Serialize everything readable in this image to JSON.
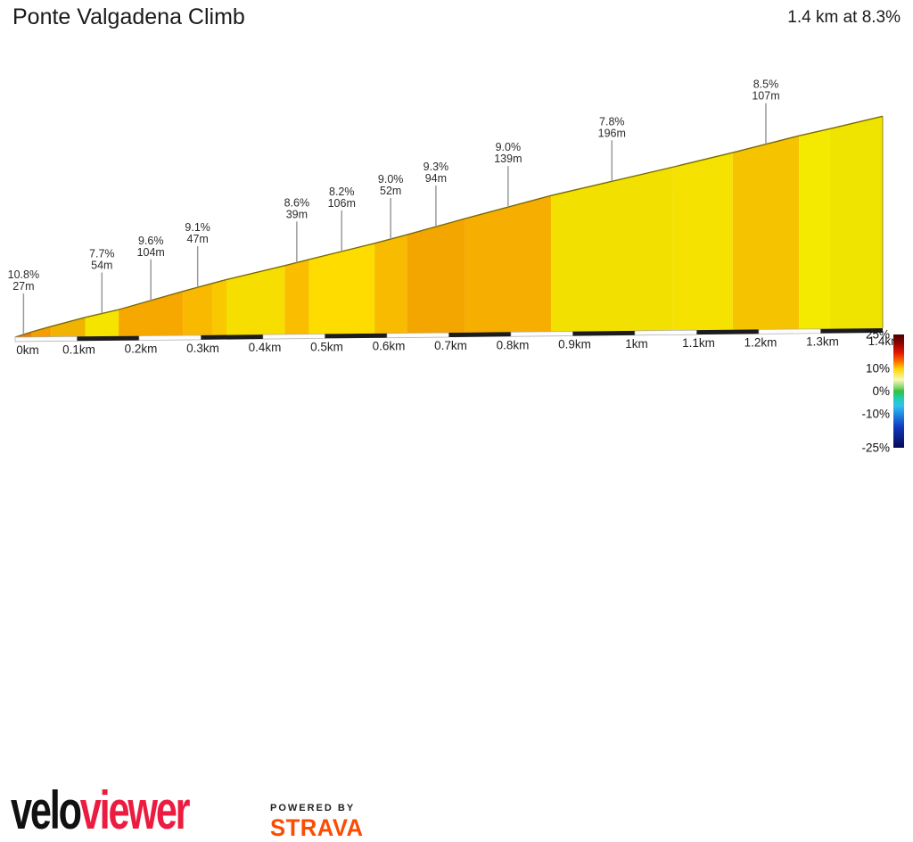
{
  "header": {
    "title": "Ponte Valgadena Climb",
    "summary": "1.4 km at 8.3%"
  },
  "chart_data": {
    "type": "area",
    "title": "Ponte Valgadena Climb",
    "summary": "1.4 km at 8.3%",
    "total_distance_km": 1.4,
    "avg_gradient_pct": 8.3,
    "x_unit": "km",
    "x_ticks": [
      "0km",
      "0.1km",
      "0.2km",
      "0.3km",
      "0.4km",
      "0.5km",
      "0.6km",
      "0.7km",
      "0.8km",
      "0.9km",
      "1km",
      "1.1km",
      "1.2km",
      "1.3km",
      "1.4km"
    ],
    "grid": false,
    "legend_position": "bottom-right",
    "segments": [
      {
        "start_m": 0,
        "length_m": 27,
        "gradient_pct": 10.8,
        "color": "#EE7C00",
        "labeled": true,
        "label_grade": "10.8%",
        "label_length": "27m"
      },
      {
        "start_m": 27,
        "length_m": 31,
        "gradient_pct": 9.5,
        "color": "#F59E00",
        "labeled": false,
        "label_grade": null,
        "label_length": null
      },
      {
        "start_m": 58,
        "length_m": 55,
        "gradient_pct": 8.9,
        "color": "#EFB300",
        "labeled": false,
        "label_grade": null,
        "label_length": null
      },
      {
        "start_m": 113,
        "length_m": 54,
        "gradient_pct": 7.7,
        "color": "#F4E400",
        "labeled": true,
        "label_grade": "7.7%",
        "label_length": "54m"
      },
      {
        "start_m": 167,
        "length_m": 104,
        "gradient_pct": 9.6,
        "color": "#F6A800",
        "labeled": true,
        "label_grade": "9.6%",
        "label_length": "104m"
      },
      {
        "start_m": 271,
        "length_m": 47,
        "gradient_pct": 9.1,
        "color": "#F9B900",
        "labeled": true,
        "label_grade": "9.1%",
        "label_length": "47m"
      },
      {
        "start_m": 318,
        "length_m": 23,
        "gradient_pct": 8.8,
        "color": "#F8C800",
        "labeled": false,
        "label_grade": null,
        "label_length": null
      },
      {
        "start_m": 341,
        "length_m": 94,
        "gradient_pct": 8.0,
        "color": "#F6DF00",
        "labeled": false,
        "label_grade": null,
        "label_length": null
      },
      {
        "start_m": 435,
        "length_m": 39,
        "gradient_pct": 8.6,
        "color": "#FABD00",
        "labeled": true,
        "label_grade": "8.6%",
        "label_length": "39m"
      },
      {
        "start_m": 474,
        "length_m": 106,
        "gradient_pct": 8.2,
        "color": "#FFDC00",
        "labeled": true,
        "label_grade": "8.2%",
        "label_length": "106m"
      },
      {
        "start_m": 580,
        "length_m": 52,
        "gradient_pct": 9.0,
        "color": "#F8BB00",
        "labeled": true,
        "label_grade": "9.0%",
        "label_length": "52m"
      },
      {
        "start_m": 632,
        "length_m": 94,
        "gradient_pct": 9.3,
        "color": "#F3A600",
        "labeled": true,
        "label_grade": "9.3%",
        "label_length": "94m"
      },
      {
        "start_m": 726,
        "length_m": 139,
        "gradient_pct": 9.0,
        "color": "#F6AE00",
        "labeled": true,
        "label_grade": "9.0%",
        "label_length": "139m"
      },
      {
        "start_m": 865,
        "length_m": 196,
        "gradient_pct": 7.8,
        "color": "#F1E000",
        "labeled": true,
        "label_grade": "7.8%",
        "label_length": "196m"
      },
      {
        "start_m": 1061,
        "length_m": 97,
        "gradient_pct": 8.1,
        "color": "#F5E200",
        "labeled": false,
        "label_grade": null,
        "label_length": null
      },
      {
        "start_m": 1158,
        "length_m": 107,
        "gradient_pct": 8.5,
        "color": "#F5C300",
        "labeled": true,
        "label_grade": "8.5%",
        "label_length": "107m"
      },
      {
        "start_m": 1265,
        "length_m": 50,
        "gradient_pct": 7.6,
        "color": "#F4EA00",
        "labeled": false,
        "label_grade": null,
        "label_length": null
      },
      {
        "start_m": 1315,
        "length_m": 85,
        "gradient_pct": 7.9,
        "color": "#EFE300",
        "labeled": false,
        "label_grade": null,
        "label_length": null
      }
    ],
    "profile_outline_color": "#7A6B05",
    "scale_bar_colors": {
      "light": "#FCFCFC",
      "dark": "#1C1C1C",
      "border": "#AAAAAA"
    },
    "gradient_legend": {
      "ticks": [
        {
          "label": "25%",
          "pct": 25
        },
        {
          "label": "10%",
          "pct": 10
        },
        {
          "label": "0%",
          "pct": 0
        },
        {
          "label": "-10%",
          "pct": -10
        },
        {
          "label": "-25%",
          "pct": -25
        }
      ],
      "range_top_pct": 25,
      "range_bottom_pct": -25,
      "stops": [
        {
          "pos": 0.0,
          "color": "#4A0000"
        },
        {
          "pos": 0.07,
          "color": "#8B0000"
        },
        {
          "pos": 0.16,
          "color": "#E01800"
        },
        {
          "pos": 0.24,
          "color": "#FF7000"
        },
        {
          "pos": 0.3,
          "color": "#FFD200"
        },
        {
          "pos": 0.4,
          "color": "#FBF8B4"
        },
        {
          "pos": 0.47,
          "color": "#7CD670"
        },
        {
          "pos": 0.5,
          "color": "#34C238"
        },
        {
          "pos": 0.56,
          "color": "#1FCFAB"
        },
        {
          "pos": 0.63,
          "color": "#2FC2EE"
        },
        {
          "pos": 0.72,
          "color": "#1E7EDD"
        },
        {
          "pos": 0.82,
          "color": "#1038BE"
        },
        {
          "pos": 1.0,
          "color": "#050A52"
        }
      ]
    }
  },
  "footer": {
    "logo_black": "velo",
    "logo_red": "viewer",
    "logo_red_color": "#EB1C40",
    "powered_by": "POWERED BY",
    "strava": "STRAVA",
    "strava_color": "#FC4C02"
  }
}
